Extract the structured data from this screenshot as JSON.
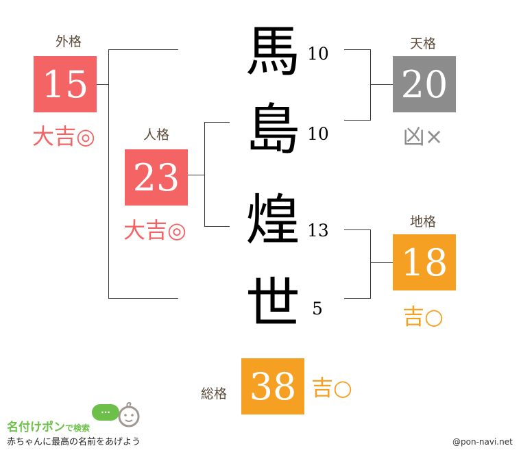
{
  "colors": {
    "good": "#f46464",
    "bad": "#8c8c8c",
    "fair": "#f5a023",
    "label": "#5a4a3a"
  },
  "name": [
    {
      "char": "馬",
      "strokes": "10"
    },
    {
      "char": "島",
      "strokes": "10"
    },
    {
      "char": "煌",
      "strokes": "13"
    },
    {
      "char": "世",
      "strokes": "5"
    }
  ],
  "gaikaku": {
    "label": "外格",
    "value": "15",
    "fortune": "大吉◎"
  },
  "jinkaku": {
    "label": "人格",
    "value": "23",
    "fortune": "大吉◎"
  },
  "tenkaku": {
    "label": "天格",
    "value": "20",
    "fortune": "凶×"
  },
  "chikaku": {
    "label": "地格",
    "value": "18",
    "fortune": "吉○"
  },
  "soukaku": {
    "label": "総格",
    "value": "38",
    "fortune": "吉○"
  },
  "logo": {
    "title": "名付けポン",
    "suffix": "で検索",
    "tagline": "赤ちゃんに最高の名前をあげよう",
    "bubble": "..."
  },
  "credit": "@pon-navi.net"
}
